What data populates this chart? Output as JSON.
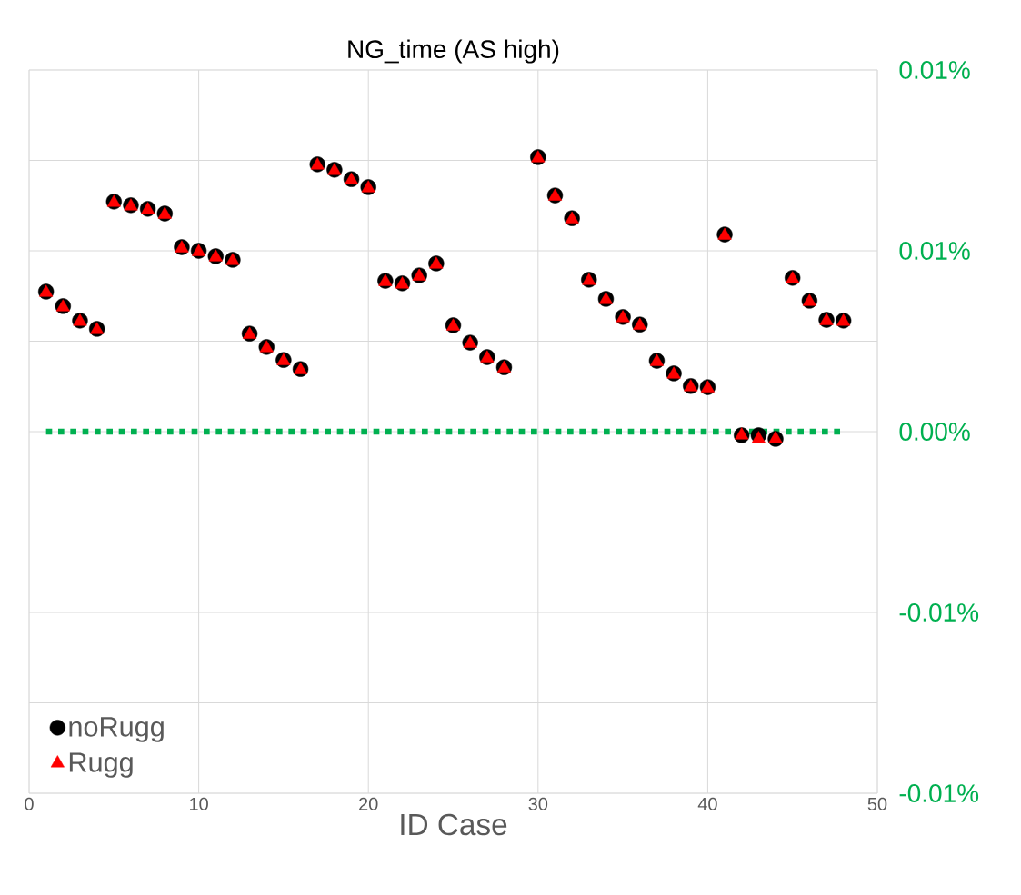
{
  "chart_data": {
    "type": "scatter",
    "title": "NG_time (AS high)",
    "xlabel": "ID Case",
    "x": [
      1,
      2,
      3,
      4,
      5,
      6,
      7,
      8,
      9,
      10,
      11,
      12,
      13,
      14,
      15,
      16,
      17,
      18,
      19,
      20,
      21,
      22,
      23,
      24,
      25,
      26,
      27,
      28,
      30,
      31,
      32,
      33,
      34,
      35,
      36,
      37,
      38,
      39,
      40,
      41,
      42,
      43,
      44,
      45,
      46,
      47,
      48
    ],
    "series": [
      {
        "name": "noRugg",
        "color": "#000000",
        "marker": "circle",
        "values": [
          0.00387,
          0.00347,
          0.00307,
          0.00284,
          0.00636,
          0.00626,
          0.00616,
          0.00603,
          0.0051,
          0.005,
          0.00485,
          0.00475,
          0.00271,
          0.00234,
          0.00198,
          0.00173,
          0.00739,
          0.00724,
          0.00698,
          0.00676,
          0.00417,
          0.0041,
          0.00432,
          0.00465,
          0.00294,
          0.00246,
          0.00206,
          0.00178,
          0.00759,
          0.00653,
          0.0059,
          0.0042,
          0.00367,
          0.00317,
          0.00296,
          0.00196,
          0.00161,
          0.00126,
          0.00123,
          0.00545,
          -0.0001,
          -0.0001,
          -0.0002,
          0.00425,
          0.00362,
          0.00309,
          0.00307
        ]
      },
      {
        "name": "Rugg",
        "color": "#ff0000",
        "marker": "triangle",
        "values": [
          0.00384,
          0.00344,
          0.00304,
          0.00281,
          0.00633,
          0.00623,
          0.00613,
          0.006,
          0.00507,
          0.00497,
          0.00482,
          0.00472,
          0.00268,
          0.00231,
          0.00195,
          0.0017,
          0.00736,
          0.00721,
          0.00695,
          0.00673,
          0.00414,
          0.00407,
          0.00429,
          0.00462,
          0.00291,
          0.00243,
          0.00203,
          0.00175,
          0.00756,
          0.0065,
          0.00587,
          0.00417,
          0.00364,
          0.00314,
          0.00293,
          0.00193,
          0.00158,
          0.00123,
          0.0012,
          0.00542,
          -0.0001,
          -0.0002,
          -0.0002,
          0.00422,
          0.00359,
          0.00306,
          0.00304
        ]
      }
    ],
    "xlim": [
      0,
      50
    ],
    "xticks": [
      0,
      10,
      20,
      30,
      40,
      50
    ],
    "ylim": [
      -0.01,
      0.01
    ],
    "yticks": [
      {
        "value": -0.01,
        "label": "-0.01%"
      },
      {
        "value": -0.0075,
        "label": null
      },
      {
        "value": -0.005,
        "label": "-0.01%"
      },
      {
        "value": -0.0025,
        "label": null
      },
      {
        "value": 0,
        "label": "0.00%"
      },
      {
        "value": 0.0025,
        "label": null
      },
      {
        "value": 0.005,
        "label": "0.01%"
      },
      {
        "value": 0.0075,
        "label": null
      },
      {
        "value": 0.01,
        "label": "0.01%"
      }
    ],
    "ref_lines": [
      {
        "axis": "y",
        "value": 0,
        "color": "#00b050",
        "line_style": "dotted"
      }
    ],
    "grid": true,
    "legend": "bottom left"
  }
}
